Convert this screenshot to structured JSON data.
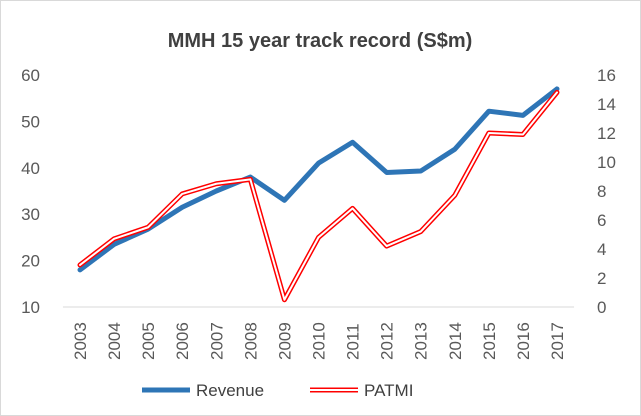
{
  "chart_data": {
    "type": "line",
    "title": "MMH 15 year track record (S$m)",
    "x": [
      "2003",
      "2004",
      "2005",
      "2006",
      "2007",
      "2008",
      "2009",
      "2010",
      "2011",
      "2012",
      "2013",
      "2014",
      "2015",
      "2016",
      "2017"
    ],
    "left_axis": {
      "ylim": [
        10,
        60
      ],
      "ticks": [
        "10",
        "20",
        "30",
        "40",
        "50",
        "60"
      ]
    },
    "right_axis": {
      "ylim": [
        0,
        16
      ],
      "ticks": [
        "0",
        "2",
        "4",
        "6",
        "8",
        "10",
        "12",
        "14",
        "16"
      ]
    },
    "series": [
      {
        "name": "Revenue",
        "axis": "left",
        "color": "#2e75b6",
        "style": "solid-thick",
        "values": [
          18,
          23.5,
          26.8,
          31.5,
          35,
          38,
          33,
          41,
          45.5,
          39,
          39.3,
          44,
          52.2,
          51.3,
          57
        ]
      },
      {
        "name": "PATMI",
        "axis": "right",
        "color": "#ff0000",
        "style": "double-line",
        "values": [
          2.9,
          4.7,
          5.5,
          7.8,
          8.5,
          8.8,
          0.5,
          4.8,
          6.8,
          4.2,
          5.2,
          7.7,
          12,
          11.9,
          14.8
        ]
      }
    ],
    "grid": false,
    "legend_position": "bottom"
  }
}
